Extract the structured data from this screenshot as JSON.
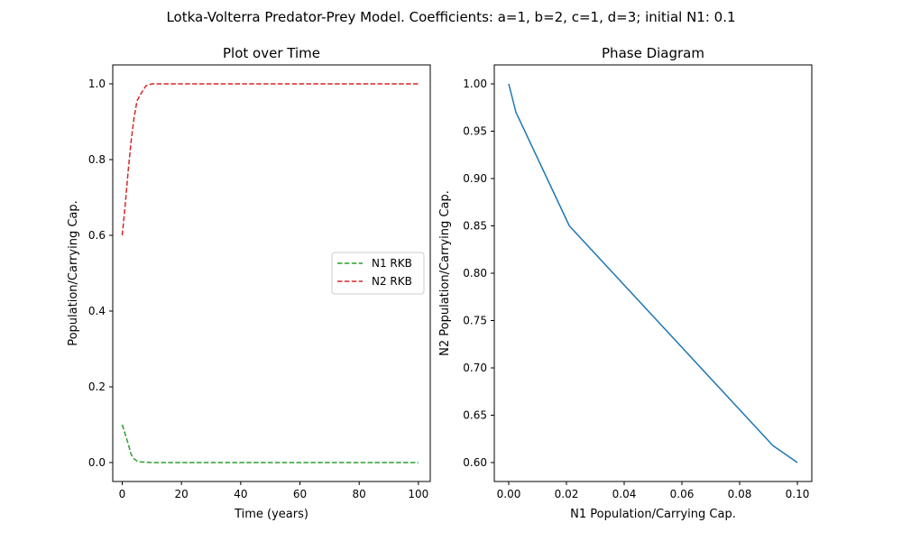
{
  "figure": {
    "suptitle": "Lotka-Volterra Predator-Prey Model. Coefficients: a=1, b=2, c=1, d=3; initial N1: 0.1"
  },
  "chart_data": [
    {
      "type": "line",
      "title": "Plot over Time",
      "xlabel": "Time (years)",
      "ylabel": "Population/Carrying Cap.",
      "xlim": [
        -3.2,
        104
      ],
      "ylim": [
        -0.05,
        1.05
      ],
      "xticks": [
        0,
        20,
        40,
        60,
        80,
        100
      ],
      "xtick_labels": [
        "0",
        "20",
        "40",
        "60",
        "80",
        "100"
      ],
      "yticks": [
        0.0,
        0.2,
        0.4,
        0.6,
        0.8,
        1.0
      ],
      "ytick_labels": [
        "0.0",
        "0.2",
        "0.4",
        "0.6",
        "0.8",
        "1.0"
      ],
      "grid": false,
      "legend_position": "center-right",
      "series": [
        {
          "name": "N1 RKB",
          "color": "#2ca02c",
          "dash": "dashed",
          "x": [
            0,
            1,
            2,
            3,
            4,
            5,
            6,
            8,
            10,
            15,
            20,
            40,
            60,
            80,
            100
          ],
          "y": [
            0.1,
            0.075,
            0.05,
            0.021,
            0.01,
            0.004,
            0.002,
            0.001,
            0.0,
            0.0,
            0.0,
            0.0,
            0.0,
            0.0,
            0.0
          ]
        },
        {
          "name": "N2 RKB",
          "color": "#d62728",
          "dash": "dashed",
          "x": [
            0,
            1,
            2,
            3,
            4,
            5,
            6,
            8,
            10,
            15,
            20,
            40,
            60,
            80,
            100
          ],
          "y": [
            0.6,
            0.68,
            0.77,
            0.85,
            0.91,
            0.955,
            0.97,
            0.995,
            1.0,
            1.0,
            1.0,
            1.0,
            1.0,
            1.0,
            1.0
          ]
        }
      ]
    },
    {
      "type": "line",
      "title": "Phase Diagram",
      "xlabel": "N1 Population/Carrying Cap.",
      "ylabel": "N2 Population/Carrying Cap.",
      "xlim": [
        -0.005,
        0.105
      ],
      "ylim": [
        0.58,
        1.02
      ],
      "xticks": [
        0.0,
        0.02,
        0.04,
        0.06,
        0.08,
        0.1
      ],
      "xtick_labels": [
        "0.00",
        "0.02",
        "0.04",
        "0.06",
        "0.08",
        "0.10"
      ],
      "yticks": [
        0.6,
        0.65,
        0.7,
        0.75,
        0.8,
        0.85,
        0.9,
        0.95,
        1.0
      ],
      "ytick_labels": [
        "0.60",
        "0.65",
        "0.70",
        "0.75",
        "0.80",
        "0.85",
        "0.90",
        "0.95",
        "1.00"
      ],
      "grid": false,
      "series": [
        {
          "color": "#1f77b4",
          "x": [
            0.1,
            0.0915,
            0.021,
            0.0025,
            0.0
          ],
          "y": [
            0.6,
            0.618,
            0.85,
            0.97,
            1.0
          ]
        }
      ]
    }
  ]
}
